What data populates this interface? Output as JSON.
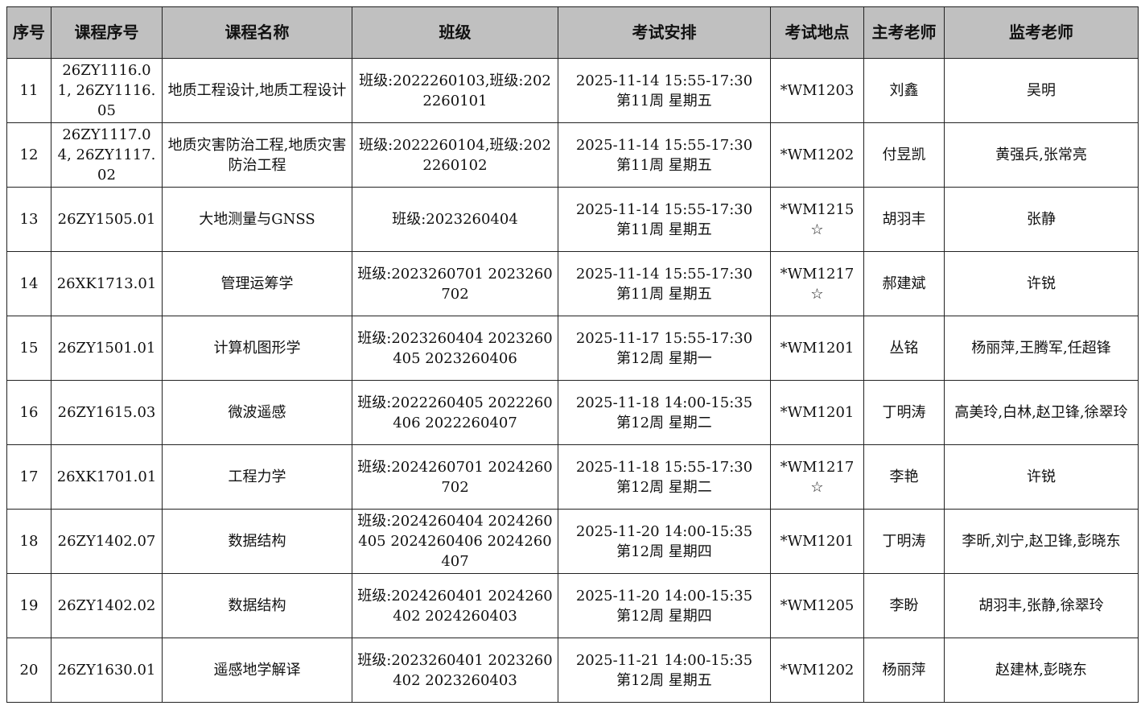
{
  "table": {
    "headers": [
      "序号",
      "课程序号",
      "课程名称",
      "班级",
      "考试安排",
      "考试地点",
      "主考老师",
      "监考老师"
    ],
    "rows": [
      [
        "11",
        "26ZY1116.01, 26ZY1116.05",
        "地质工程设计,地质工程设计",
        "班级:2022260103,班级:2022260101",
        "2025-11-14 15:55-17:30\n第11周 星期五",
        "*WM1203",
        "刘鑫",
        "吴明"
      ],
      [
        "12",
        "26ZY1117.04, 26ZY1117.02",
        "地质灾害防治工程,地质灾害防治工程",
        "班级:2022260104,班级:2022260102",
        "2025-11-14 15:55-17:30\n第11周 星期五",
        "*WM1202",
        "付昱凯",
        "黄强兵,张常亮"
      ],
      [
        "13",
        "26ZY1505.01",
        "大地测量与GNSS",
        "班级:2023260404",
        "2025-11-14 15:55-17:30\n第11周 星期五",
        "*WM1215☆",
        "胡羽丰",
        "张静"
      ],
      [
        "14",
        "26XK1713.01",
        "管理运筹学",
        "班级:2023260701 2023260702",
        "2025-11-14 15:55-17:30\n第11周 星期五",
        "*WM1217☆",
        "郝建斌",
        "许锐"
      ],
      [
        "15",
        "26ZY1501.01",
        "计算机图形学",
        "班级:2023260404 2023260405 2023260406",
        "2025-11-17 15:55-17:30\n第12周 星期一",
        "*WM1201",
        "丛铭",
        "杨丽萍,王腾军,任超锋"
      ],
      [
        "16",
        "26ZY1615.03",
        "微波遥感",
        "班级:2022260405 2022260406 2022260407",
        "2025-11-18 14:00-15:35\n第12周 星期二",
        "*WM1201",
        "丁明涛",
        "高美玲,白林,赵卫锋,徐翠玲"
      ],
      [
        "17",
        "26XK1701.01",
        "工程力学",
        "班级:2024260701 2024260702",
        "2025-11-18 15:55-17:30\n第12周 星期二",
        "*WM1217☆",
        "李艳",
        "许锐"
      ],
      [
        "18",
        "26ZY1402.07",
        "数据结构",
        "班级:2024260404 2024260405 2024260406 2024260407",
        "2025-11-20 14:00-15:35\n第12周 星期四",
        "*WM1201",
        "丁明涛",
        "李昕,刘宁,赵卫锋,彭晓东"
      ],
      [
        "19",
        "26ZY1402.02",
        "数据结构",
        "班级:2024260401 2024260402 2024260403",
        "2025-11-20 14:00-15:35\n第12周 星期四",
        "*WM1205",
        "李盼",
        "胡羽丰,张静,徐翠玲"
      ],
      [
        "20",
        "26ZY1630.01",
        "遥感地学解译",
        "班级:2023260401 2023260402 2023260403",
        "2025-11-21 14:00-15:35\n第12周 星期五",
        "*WM1202",
        "杨丽萍",
        "赵建林,彭晓东"
      ]
    ]
  },
  "colors": {
    "header_bg": "#c0c0c0",
    "border": "#222222"
  }
}
